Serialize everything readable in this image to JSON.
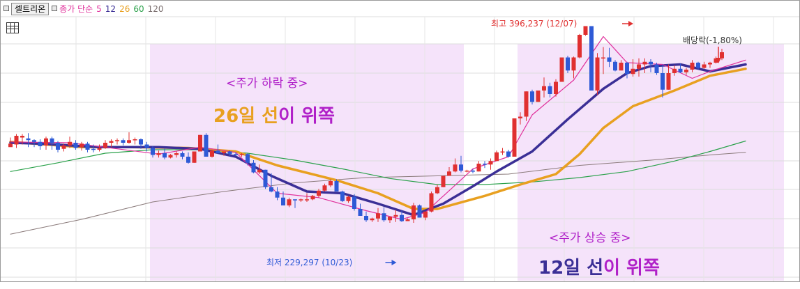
{
  "toolbar": {
    "stock_name": "셀트리온",
    "indicator_label": "종가 단순",
    "ma_periods": [
      "5",
      "12",
      "26",
      "60",
      "120"
    ]
  },
  "colors": {
    "up": "#e03030",
    "down": "#2e5ad6",
    "ma5": "#e0309b",
    "ma12": "#3b2f96",
    "ma26": "#e8a020",
    "ma60": "#2aa14a",
    "ma120": "#8a7a7a",
    "zone": "#f5e3fa"
  },
  "annotations": {
    "high_label": "최고 396,237 (12/07)",
    "low_label": "최저 229,297 (10/23)",
    "dividend_label": "배당락(-1,80%)",
    "falling_title": "<주가 하락 중>",
    "falling_sub_a": "26일 선",
    "falling_sub_b": "이 위쪽",
    "rising_title": "<주가 상승 중>",
    "rising_sub_a": "12일 선",
    "rising_sub_b": "이 위쪽"
  },
  "chart_data": {
    "type": "candlestick",
    "high": 396237,
    "low": 229297,
    "candles": [
      [
        3,
        14,
        5,
        7
      ],
      [
        6,
        18,
        2,
        16
      ],
      [
        14,
        18,
        6,
        16
      ],
      [
        13,
        19,
        3,
        11
      ],
      [
        11,
        12,
        3,
        9
      ],
      [
        9,
        12,
        0,
        4
      ],
      [
        5,
        15,
        0,
        13
      ],
      [
        13,
        15,
        0,
        8
      ],
      [
        8,
        10,
        -3,
        0
      ],
      [
        1,
        7,
        -2,
        5
      ],
      [
        5,
        15,
        2,
        9
      ],
      [
        8,
        11,
        0,
        2
      ],
      [
        3,
        9,
        -1,
        7
      ],
      [
        7,
        9,
        -3,
        0
      ],
      [
        1,
        6,
        -3,
        0
      ],
      [
        0,
        6,
        -2,
        2
      ],
      [
        2,
        11,
        1,
        8
      ],
      [
        8,
        12,
        3,
        10
      ],
      [
        10,
        13,
        6,
        11
      ],
      [
        11,
        13,
        5,
        8
      ],
      [
        8,
        20,
        7,
        11
      ],
      [
        11,
        14,
        6,
        12
      ],
      [
        12,
        13,
        1,
        6
      ],
      [
        6,
        9,
        -2,
        2
      ],
      [
        2,
        4,
        -9,
        -6
      ],
      [
        -6,
        -1,
        -9,
        -4
      ],
      [
        -4,
        1,
        -11,
        -9
      ],
      [
        -9,
        -5,
        -10,
        -6
      ],
      [
        -6,
        -2,
        -9,
        -4
      ],
      [
        -4,
        -2,
        -11,
        -8
      ],
      [
        -8,
        -3,
        -16,
        -15
      ],
      [
        -15,
        -2,
        -15,
        -2
      ],
      [
        -2,
        17,
        -2,
        17
      ],
      [
        17,
        19,
        -8,
        -8
      ],
      [
        -8,
        0,
        -9,
        -1
      ],
      [
        -1,
        6,
        -5,
        -4
      ],
      [
        -4,
        -2,
        -7,
        -2
      ],
      [
        -2,
        -1,
        -7,
        -5
      ],
      [
        -5,
        -3,
        -7,
        -6
      ],
      [
        -6,
        -4,
        -8,
        -5
      ],
      [
        -5,
        -4,
        -18,
        -15
      ],
      [
        -15,
        -12,
        -27,
        -26
      ],
      [
        -26,
        -17,
        -28,
        -23
      ],
      [
        -23,
        -23,
        -45,
        -43
      ],
      [
        -43,
        -27,
        -49,
        -48
      ],
      [
        -48,
        -43,
        -58,
        -55
      ],
      [
        -55,
        -48,
        -64,
        -64
      ],
      [
        -64,
        -55,
        -66,
        -57
      ],
      [
        -57,
        -57,
        -67,
        -58
      ],
      [
        -58,
        -56,
        -60,
        -57
      ],
      [
        -57,
        -50,
        -60,
        -57
      ],
      [
        -57,
        -52,
        -58,
        -53
      ],
      [
        -53,
        -45,
        -55,
        -47
      ],
      [
        -47,
        -39,
        -48,
        -41
      ],
      [
        -41,
        -34,
        -43,
        -36
      ],
      [
        -36,
        -34,
        -48,
        -48
      ],
      [
        -48,
        -47,
        -60,
        -59
      ],
      [
        -59,
        -53,
        -61,
        -54
      ],
      [
        -54,
        -51,
        -70,
        -68
      ],
      [
        -68,
        -62,
        -76,
        -76
      ],
      [
        -76,
        -71,
        -83,
        -81
      ],
      [
        -81,
        -78,
        -83,
        -79
      ],
      [
        -79,
        -67,
        -83,
        -73
      ],
      [
        -73,
        -66,
        -83,
        -81
      ],
      [
        -81,
        -77,
        -84,
        -77
      ],
      [
        -77,
        -69,
        -83,
        -75
      ],
      [
        -75,
        -70,
        -83,
        -82
      ],
      [
        -82,
        -79,
        -82,
        -80
      ],
      [
        -80,
        -61,
        -84,
        -64
      ],
      [
        -64,
        -63,
        -78,
        -78
      ],
      [
        -78,
        -71,
        -81,
        -71
      ],
      [
        -71,
        -48,
        -72,
        -50
      ],
      [
        -50,
        -40,
        -51,
        -43
      ],
      [
        -43,
        -30,
        -43,
        -30
      ],
      [
        -30,
        -20,
        -30,
        -25
      ],
      [
        -25,
        -10,
        -26,
        -17
      ],
      [
        -17,
        -7,
        -26,
        -24
      ],
      [
        -24,
        -23,
        -26,
        -24
      ],
      [
        -24,
        -22,
        -27,
        -25
      ],
      [
        -25,
        -13,
        -25,
        -16
      ],
      [
        -16,
        -13,
        -21,
        -17
      ],
      [
        -17,
        -10,
        -23,
        -13
      ],
      [
        -13,
        -1,
        -13,
        -3
      ],
      [
        -3,
        2,
        -6,
        -2
      ],
      [
        -2,
        0,
        -9,
        -8
      ],
      [
        -8,
        36,
        -8,
        36
      ],
      [
        36,
        43,
        29,
        38
      ],
      [
        38,
        67,
        33,
        67
      ],
      [
        67,
        69,
        52,
        55
      ],
      [
        55,
        68,
        55,
        68
      ],
      [
        68,
        83,
        60,
        73
      ],
      [
        73,
        77,
        60,
        64
      ],
      [
        64,
        81,
        61,
        78
      ],
      [
        78,
        106,
        78,
        106
      ],
      [
        106,
        108,
        88,
        91
      ],
      [
        91,
        107,
        82,
        106
      ],
      [
        106,
        133,
        105,
        132
      ],
      [
        132,
        142,
        131,
        142
      ],
      [
        142,
        142,
        68,
        68
      ],
      [
        68,
        111,
        63,
        106
      ],
      [
        106,
        118,
        87,
        106
      ],
      [
        106,
        117,
        95,
        101
      ],
      [
        101,
        103,
        90,
        91
      ],
      [
        91,
        103,
        91,
        100
      ],
      [
        100,
        101,
        82,
        87
      ],
      [
        87,
        104,
        84,
        93
      ],
      [
        93,
        105,
        84,
        98
      ],
      [
        98,
        105,
        88,
        101
      ],
      [
        101,
        104,
        89,
        98
      ],
      [
        98,
        100,
        86,
        88
      ],
      [
        88,
        98,
        60,
        69
      ],
      [
        69,
        98,
        69,
        88
      ],
      [
        88,
        97,
        85,
        93
      ],
      [
        93,
        99,
        88,
        89
      ],
      [
        89,
        94,
        86,
        92
      ],
      [
        92,
        103,
        89,
        100
      ],
      [
        100,
        101,
        92,
        94
      ],
      [
        94,
        101,
        93,
        98
      ],
      [
        98,
        101,
        94,
        100
      ],
      [
        100,
        107,
        99,
        105
      ],
      [
        105,
        116,
        103,
        112
      ]
    ],
    "ma5": [
      [
        0,
        9
      ],
      [
        10,
        8
      ],
      [
        25,
        -5
      ],
      [
        32,
        3
      ],
      [
        38,
        -3
      ],
      [
        45,
        -50
      ],
      [
        52,
        -55
      ],
      [
        60,
        -70
      ],
      [
        66,
        -80
      ],
      [
        70,
        -72
      ],
      [
        78,
        -22
      ],
      [
        84,
        -8
      ],
      [
        88,
        40
      ],
      [
        95,
        80
      ],
      [
        100,
        130
      ],
      [
        104,
        100
      ],
      [
        110,
        98
      ],
      [
        115,
        82
      ],
      [
        118,
        90
      ],
      [
        124,
        103
      ]
    ],
    "ma12": [
      [
        0,
        8
      ],
      [
        5,
        7
      ],
      [
        15,
        3
      ],
      [
        25,
        3
      ],
      [
        32,
        1
      ],
      [
        38,
        -8
      ],
      [
        44,
        -30
      ],
      [
        50,
        -48
      ],
      [
        56,
        -50
      ],
      [
        62,
        -62
      ],
      [
        68,
        -75
      ],
      [
        73,
        -62
      ],
      [
        78,
        -42
      ],
      [
        82,
        -25
      ],
      [
        88,
        -2
      ],
      [
        94,
        35
      ],
      [
        100,
        70
      ],
      [
        104,
        88
      ],
      [
        108,
        96
      ],
      [
        113,
        98
      ],
      [
        118,
        90
      ],
      [
        124,
        98
      ]
    ],
    "ma26": [
      [
        0,
        9
      ],
      [
        12,
        3
      ],
      [
        20,
        3
      ],
      [
        30,
        2
      ],
      [
        38,
        -2
      ],
      [
        45,
        -18
      ],
      [
        55,
        -35
      ],
      [
        62,
        -50
      ],
      [
        68,
        -68
      ],
      [
        72,
        -68
      ],
      [
        80,
        -53
      ],
      [
        86,
        -40
      ],
      [
        92,
        -28
      ],
      [
        96,
        -5
      ],
      [
        100,
        25
      ],
      [
        105,
        50
      ],
      [
        112,
        68
      ],
      [
        118,
        85
      ],
      [
        124,
        93
      ]
    ],
    "ma60": [
      [
        0,
        -25
      ],
      [
        8,
        -15
      ],
      [
        16,
        -4
      ],
      [
        24,
        0
      ],
      [
        32,
        0
      ],
      [
        40,
        -4
      ],
      [
        48,
        -12
      ],
      [
        56,
        -22
      ],
      [
        64,
        -33
      ],
      [
        72,
        -40
      ],
      [
        80,
        -40
      ],
      [
        88,
        -37
      ],
      [
        96,
        -32
      ],
      [
        104,
        -25
      ],
      [
        112,
        -13
      ],
      [
        118,
        -2
      ],
      [
        124,
        10
      ]
    ],
    "ma120": [
      [
        0,
        -97
      ],
      [
        12,
        -80
      ],
      [
        24,
        -60
      ],
      [
        36,
        -48
      ],
      [
        48,
        -38
      ],
      [
        60,
        -32
      ],
      [
        72,
        -30
      ],
      [
        84,
        -28
      ],
      [
        96,
        -18
      ],
      [
        108,
        -12
      ],
      [
        118,
        -6
      ],
      [
        124,
        -3
      ]
    ],
    "zones": [
      [
        24,
        76
      ],
      [
        86,
        130
      ]
    ],
    "high_index": 106,
    "low_index": 67,
    "dividend_index": 128
  }
}
